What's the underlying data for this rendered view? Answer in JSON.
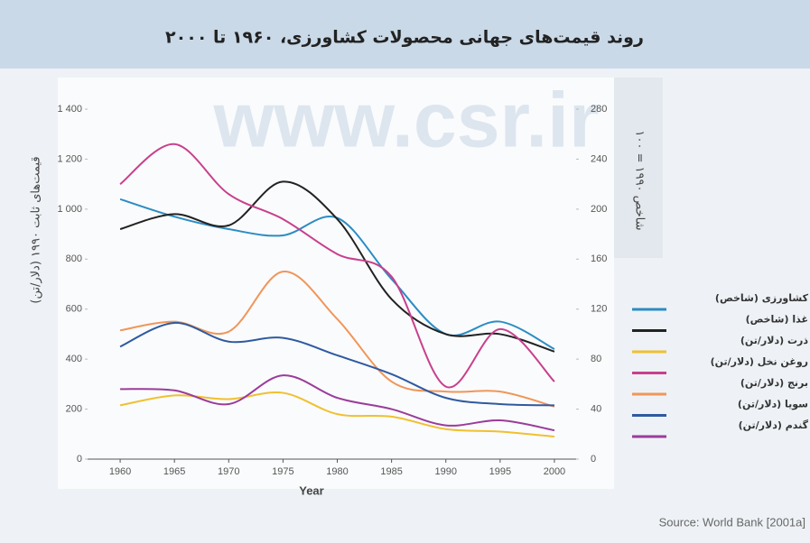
{
  "chart_data": {
    "type": "line",
    "title": "روند قیمت‌های جهانی محصولات کشاورزی، ۱۹۶۰ تا ۲۰۰۰",
    "watermark": "www.csr.ir",
    "ylabel": "قیمت‌های ثابت ۱۹۹۰ (دلار/تن)",
    "y2label": "شاخص ۱۹۹۰ = ۱۰۰",
    "xlabel": "Year",
    "source": "Source: World Bank [2001a]",
    "x": [
      1960,
      1965,
      1970,
      1975,
      1980,
      1985,
      1990,
      1995,
      2000
    ],
    "xlim": [
      1957,
      2002
    ],
    "xticks": [
      1960,
      1965,
      1970,
      1975,
      1980,
      1985,
      1990,
      1995,
      2000
    ],
    "ylim": [
      0,
      1400
    ],
    "yticks": [
      0,
      200,
      400,
      600,
      800,
      {
        "value": 1000,
        "label": "1 000"
      },
      {
        "value": 1200,
        "label": "1 200"
      },
      {
        "value": 1400,
        "label": "1 400"
      }
    ],
    "y2lim": [
      0,
      280
    ],
    "y2ticks": [
      0,
      40,
      80,
      120,
      160,
      200,
      240,
      280
    ],
    "grid": false,
    "legend": "right",
    "series": [
      {
        "name": "کشاورزی (شاخص)",
        "color": "#2b8cc4",
        "axis": "y2",
        "values": [
          208,
          194,
          184,
          179,
          193,
          144,
          100,
          110,
          88
        ]
      },
      {
        "name": "غذا (شاخص)",
        "color": "#222222",
        "axis": "y2",
        "values": [
          184,
          196,
          187,
          222,
          192,
          128,
          100,
          100,
          86
        ]
      },
      {
        "name": "ذرت (دلار/تن)",
        "color": "#f0c030",
        "values": [
          215,
          255,
          240,
          265,
          180,
          170,
          120,
          110,
          90
        ]
      },
      {
        "name": "روغن نخل (دلار/تن)",
        "color": "#c8408c",
        "values": [
          1100,
          1260,
          1060,
          960,
          820,
          730,
          290,
          520,
          310
        ]
      },
      {
        "name": "برنج (دلار/تن)",
        "color": "#f0965a",
        "values": [
          515,
          550,
          510,
          750,
          560,
          310,
          270,
          270,
          210
        ]
      },
      {
        "name": "سویا (دلار/تن)",
        "color": "#2f5aa0",
        "values": [
          450,
          545,
          470,
          485,
          415,
          340,
          245,
          220,
          215
        ]
      },
      {
        "name": "گندم (دلار/تن)",
        "color": "#9a3c9a",
        "values": [
          280,
          275,
          220,
          335,
          245,
          200,
          135,
          155,
          115
        ]
      }
    ]
  }
}
